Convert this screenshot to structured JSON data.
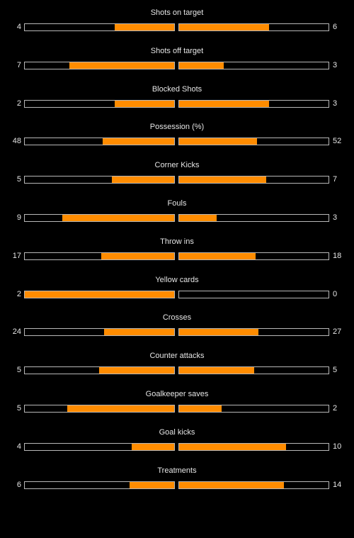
{
  "colors": {
    "fill": "#ff8c00",
    "border": "#b8b8b8",
    "background": "#000000"
  },
  "stats": [
    {
      "label": "Shots on target",
      "home": "4",
      "away": "6",
      "home_fraction": 0.4,
      "away_fraction": 0.6
    },
    {
      "label": "Shots off target",
      "home": "7",
      "away": "3",
      "home_fraction": 0.7,
      "away_fraction": 0.3
    },
    {
      "label": "Blocked Shots",
      "home": "2",
      "away": "3",
      "home_fraction": 0.4,
      "away_fraction": 0.6
    },
    {
      "label": "Possession (%)",
      "home": "48",
      "away": "52",
      "home_fraction": 0.48,
      "away_fraction": 0.52
    },
    {
      "label": "Corner Kicks",
      "home": "5",
      "away": "7",
      "home_fraction": 0.417,
      "away_fraction": 0.583
    },
    {
      "label": "Fouls",
      "home": "9",
      "away": "3",
      "home_fraction": 0.75,
      "away_fraction": 0.25
    },
    {
      "label": "Throw ins",
      "home": "17",
      "away": "18",
      "home_fraction": 0.486,
      "away_fraction": 0.514
    },
    {
      "label": "Yellow cards",
      "home": "2",
      "away": "0",
      "home_fraction": 1.0,
      "away_fraction": 0.0
    },
    {
      "label": "Crosses",
      "home": "24",
      "away": "27",
      "home_fraction": 0.471,
      "away_fraction": 0.529
    },
    {
      "label": "Counter attacks",
      "home": "5",
      "away": "5",
      "home_fraction": 0.5,
      "away_fraction": 0.5
    },
    {
      "label": "Goalkeeper saves",
      "home": "5",
      "away": "2",
      "home_fraction": 0.714,
      "away_fraction": 0.286
    },
    {
      "label": "Goal kicks",
      "home": "4",
      "away": "10",
      "home_fraction": 0.286,
      "away_fraction": 0.714
    },
    {
      "label": "Treatments",
      "home": "6",
      "away": "14",
      "home_fraction": 0.3,
      "away_fraction": 0.7
    }
  ]
}
